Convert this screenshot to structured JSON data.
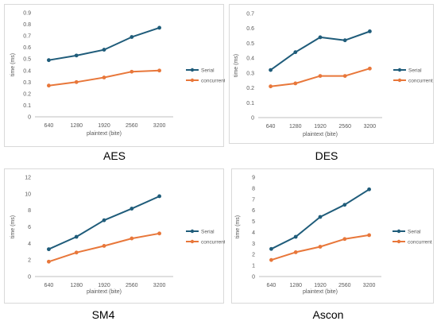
{
  "colors": {
    "serial": "#1f5c7a",
    "concurrent": "#e8773a",
    "axis": "#bfbfbf",
    "text": "#595959"
  },
  "chart_data": [
    {
      "type": "line",
      "title": "",
      "caption": "AES",
      "categories": [
        "640",
        "1280",
        "1920",
        "2560",
        "3200"
      ],
      "xlabel": "plaintext (bite)",
      "ylabel": "time (ms)",
      "ylim": [
        0,
        0.9
      ],
      "yticks": [
        "0",
        "0.1",
        "0.2",
        "0.3",
        "0.4",
        "0.5",
        "0.6",
        "0.7",
        "0.8",
        "0.9"
      ],
      "legend_position": "right",
      "series": [
        {
          "name": "Serial",
          "values": [
            0.49,
            0.53,
            0.58,
            0.69,
            0.77
          ]
        },
        {
          "name": "concurrent",
          "values": [
            0.27,
            0.3,
            0.34,
            0.39,
            0.4
          ]
        }
      ]
    },
    {
      "type": "line",
      "title": "",
      "caption": "DES",
      "categories": [
        "640",
        "1280",
        "1920",
        "2560",
        "3200"
      ],
      "xlabel": "plaintext (bite)",
      "ylabel": "time (ms)",
      "ylim": [
        0,
        0.7
      ],
      "yticks": [
        "0",
        "0.1",
        "0.2",
        "0.3",
        "0.4",
        "0.5",
        "0.6",
        "0.7"
      ],
      "legend_position": "right",
      "series": [
        {
          "name": "Serial",
          "values": [
            0.32,
            0.44,
            0.54,
            0.52,
            0.58
          ]
        },
        {
          "name": "concurrent",
          "values": [
            0.21,
            0.23,
            0.28,
            0.28,
            0.33
          ]
        }
      ]
    },
    {
      "type": "line",
      "title": "",
      "caption": "SM4",
      "categories": [
        "640",
        "1280",
        "1920",
        "2560",
        "3200"
      ],
      "xlabel": "plaintext (bite)",
      "ylabel": "time (ms)",
      "ylim": [
        0,
        12
      ],
      "yticks": [
        "0",
        "2",
        "4",
        "6",
        "8",
        "10",
        "12"
      ],
      "legend_position": "right",
      "series": [
        {
          "name": "Serial",
          "values": [
            3.3,
            4.8,
            6.8,
            8.2,
            9.7
          ]
        },
        {
          "name": "concurrent",
          "values": [
            1.8,
            2.9,
            3.7,
            4.6,
            5.2
          ]
        }
      ]
    },
    {
      "type": "line",
      "title": "",
      "caption": "Ascon",
      "categories": [
        "640",
        "1280",
        "1920",
        "2560",
        "3200"
      ],
      "xlabel": "plaintext (bite)",
      "ylabel": "time (ms)",
      "ylim": [
        0,
        9
      ],
      "yticks": [
        "0",
        "1",
        "2",
        "3",
        "4",
        "5",
        "6",
        "7",
        "8",
        "9"
      ],
      "legend_position": "right",
      "series": [
        {
          "name": "Serial",
          "values": [
            2.5,
            3.6,
            5.4,
            6.5,
            7.9
          ]
        },
        {
          "name": "concurrent",
          "values": [
            1.5,
            2.2,
            2.7,
            3.4,
            3.75
          ]
        }
      ]
    }
  ]
}
